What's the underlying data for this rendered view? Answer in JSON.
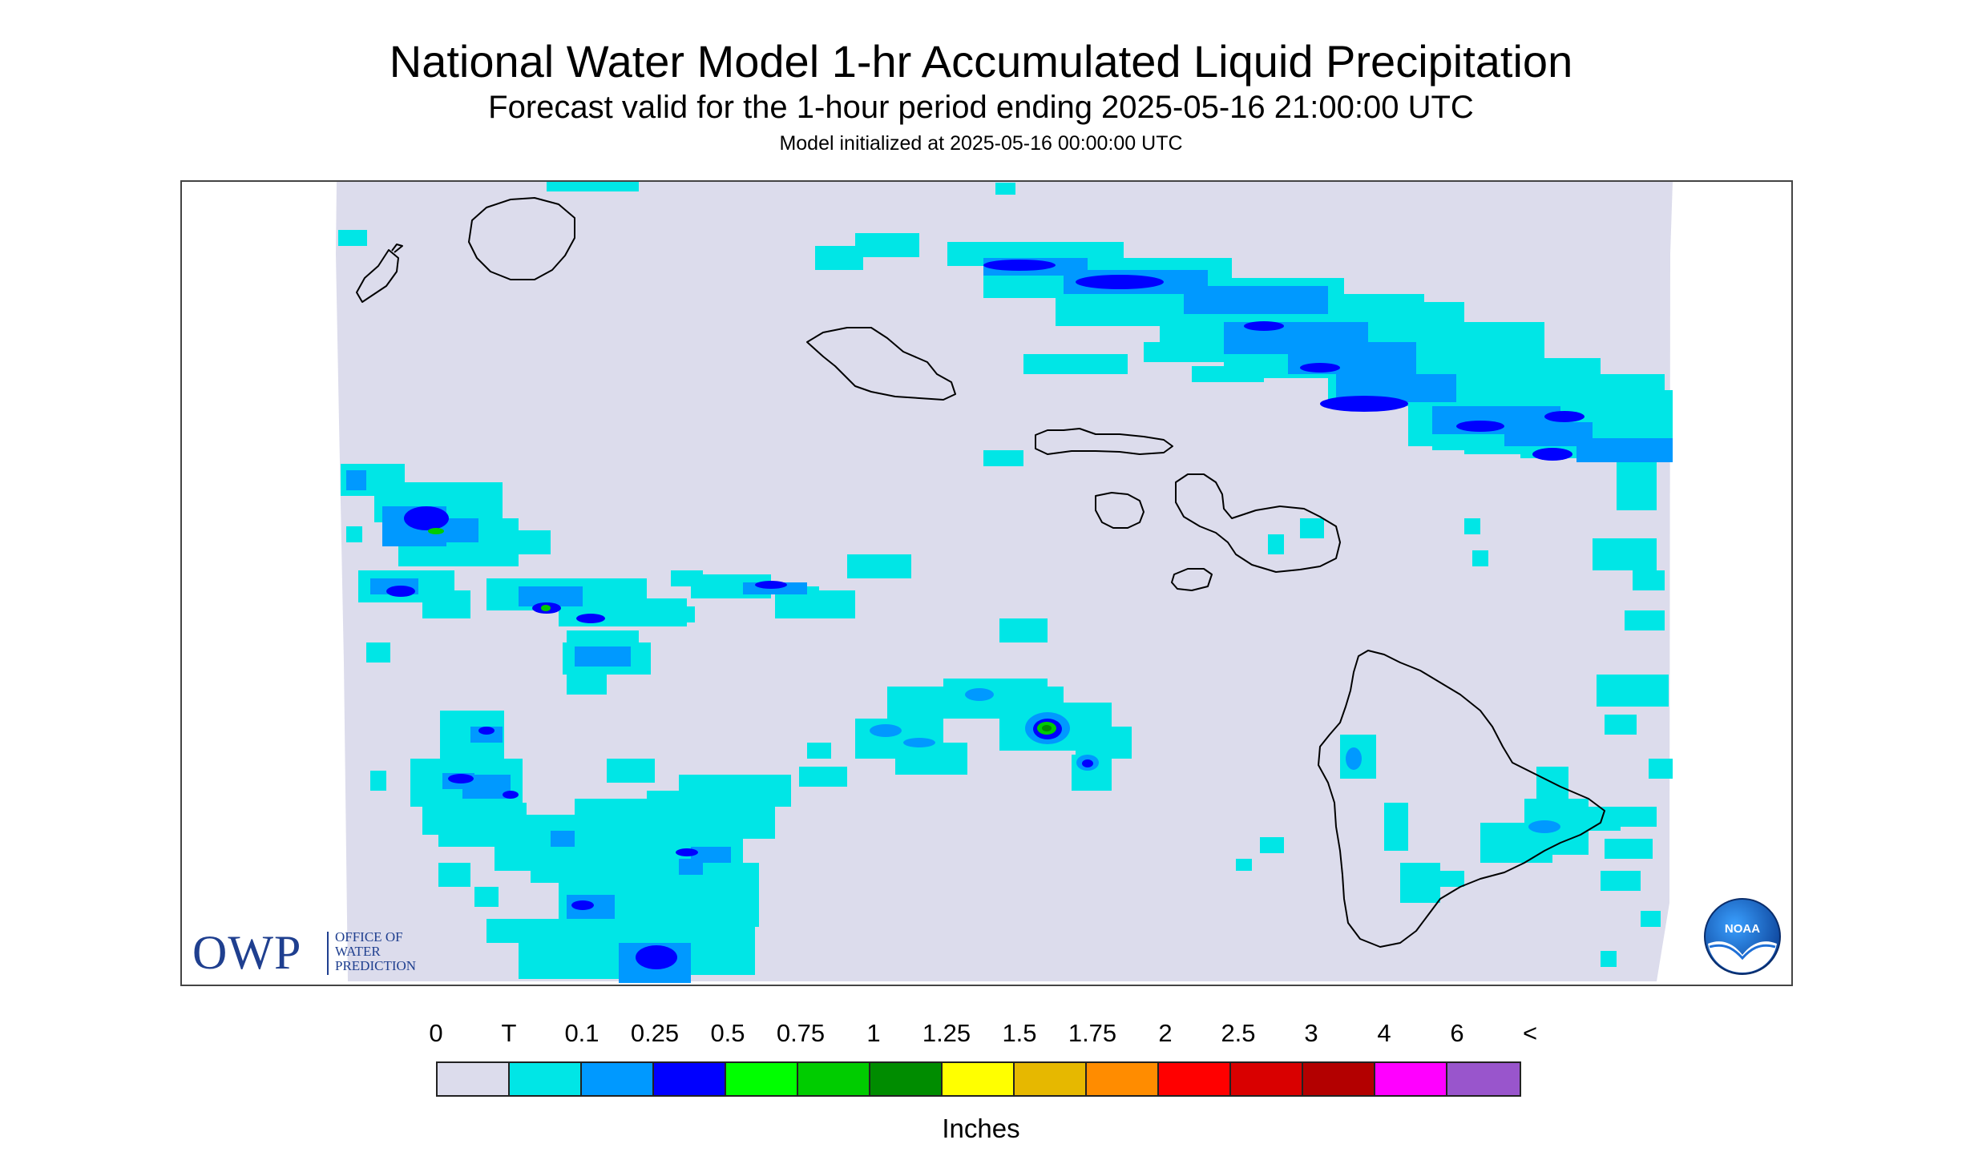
{
  "header": {
    "title": "National Water Model 1-hr Accumulated Liquid Precipitation",
    "subtitle": "Forecast valid for the 1-hour period ending 2025-05-16 21:00:00 UTC",
    "init_line": "Model initialized at 2025-05-16 00:00:00 UTC"
  },
  "map": {
    "background_color": "#dcdcec",
    "coast_color": "#000000",
    "islands": [
      "Kauai",
      "Niihau",
      "Oahu",
      "Molokai",
      "Lanai",
      "Maui",
      "Kahoolawe",
      "Hawaii"
    ]
  },
  "logos": {
    "owp": {
      "acronym": "OWP",
      "line1": "OFFICE OF",
      "line2": "WATER",
      "line3": "PREDICTION"
    },
    "noaa": {
      "text": "NOAA"
    }
  },
  "legend": {
    "labels": [
      "0",
      "T",
      "0.1",
      "0.25",
      "0.5",
      "0.75",
      "1",
      "1.25",
      "1.5",
      "1.75",
      "2",
      "2.5",
      "3",
      "4",
      "6",
      "<"
    ],
    "colors": [
      "#dcdcec",
      "#00e6e6",
      "#0099ff",
      "#0000ff",
      "#00ff00",
      "#00cc00",
      "#008c00",
      "#ffff00",
      "#e6b800",
      "#ff8c00",
      "#ff0000",
      "#d90000",
      "#b30000",
      "#ff00ff",
      "#9955cc"
    ],
    "units": "Inches"
  }
}
